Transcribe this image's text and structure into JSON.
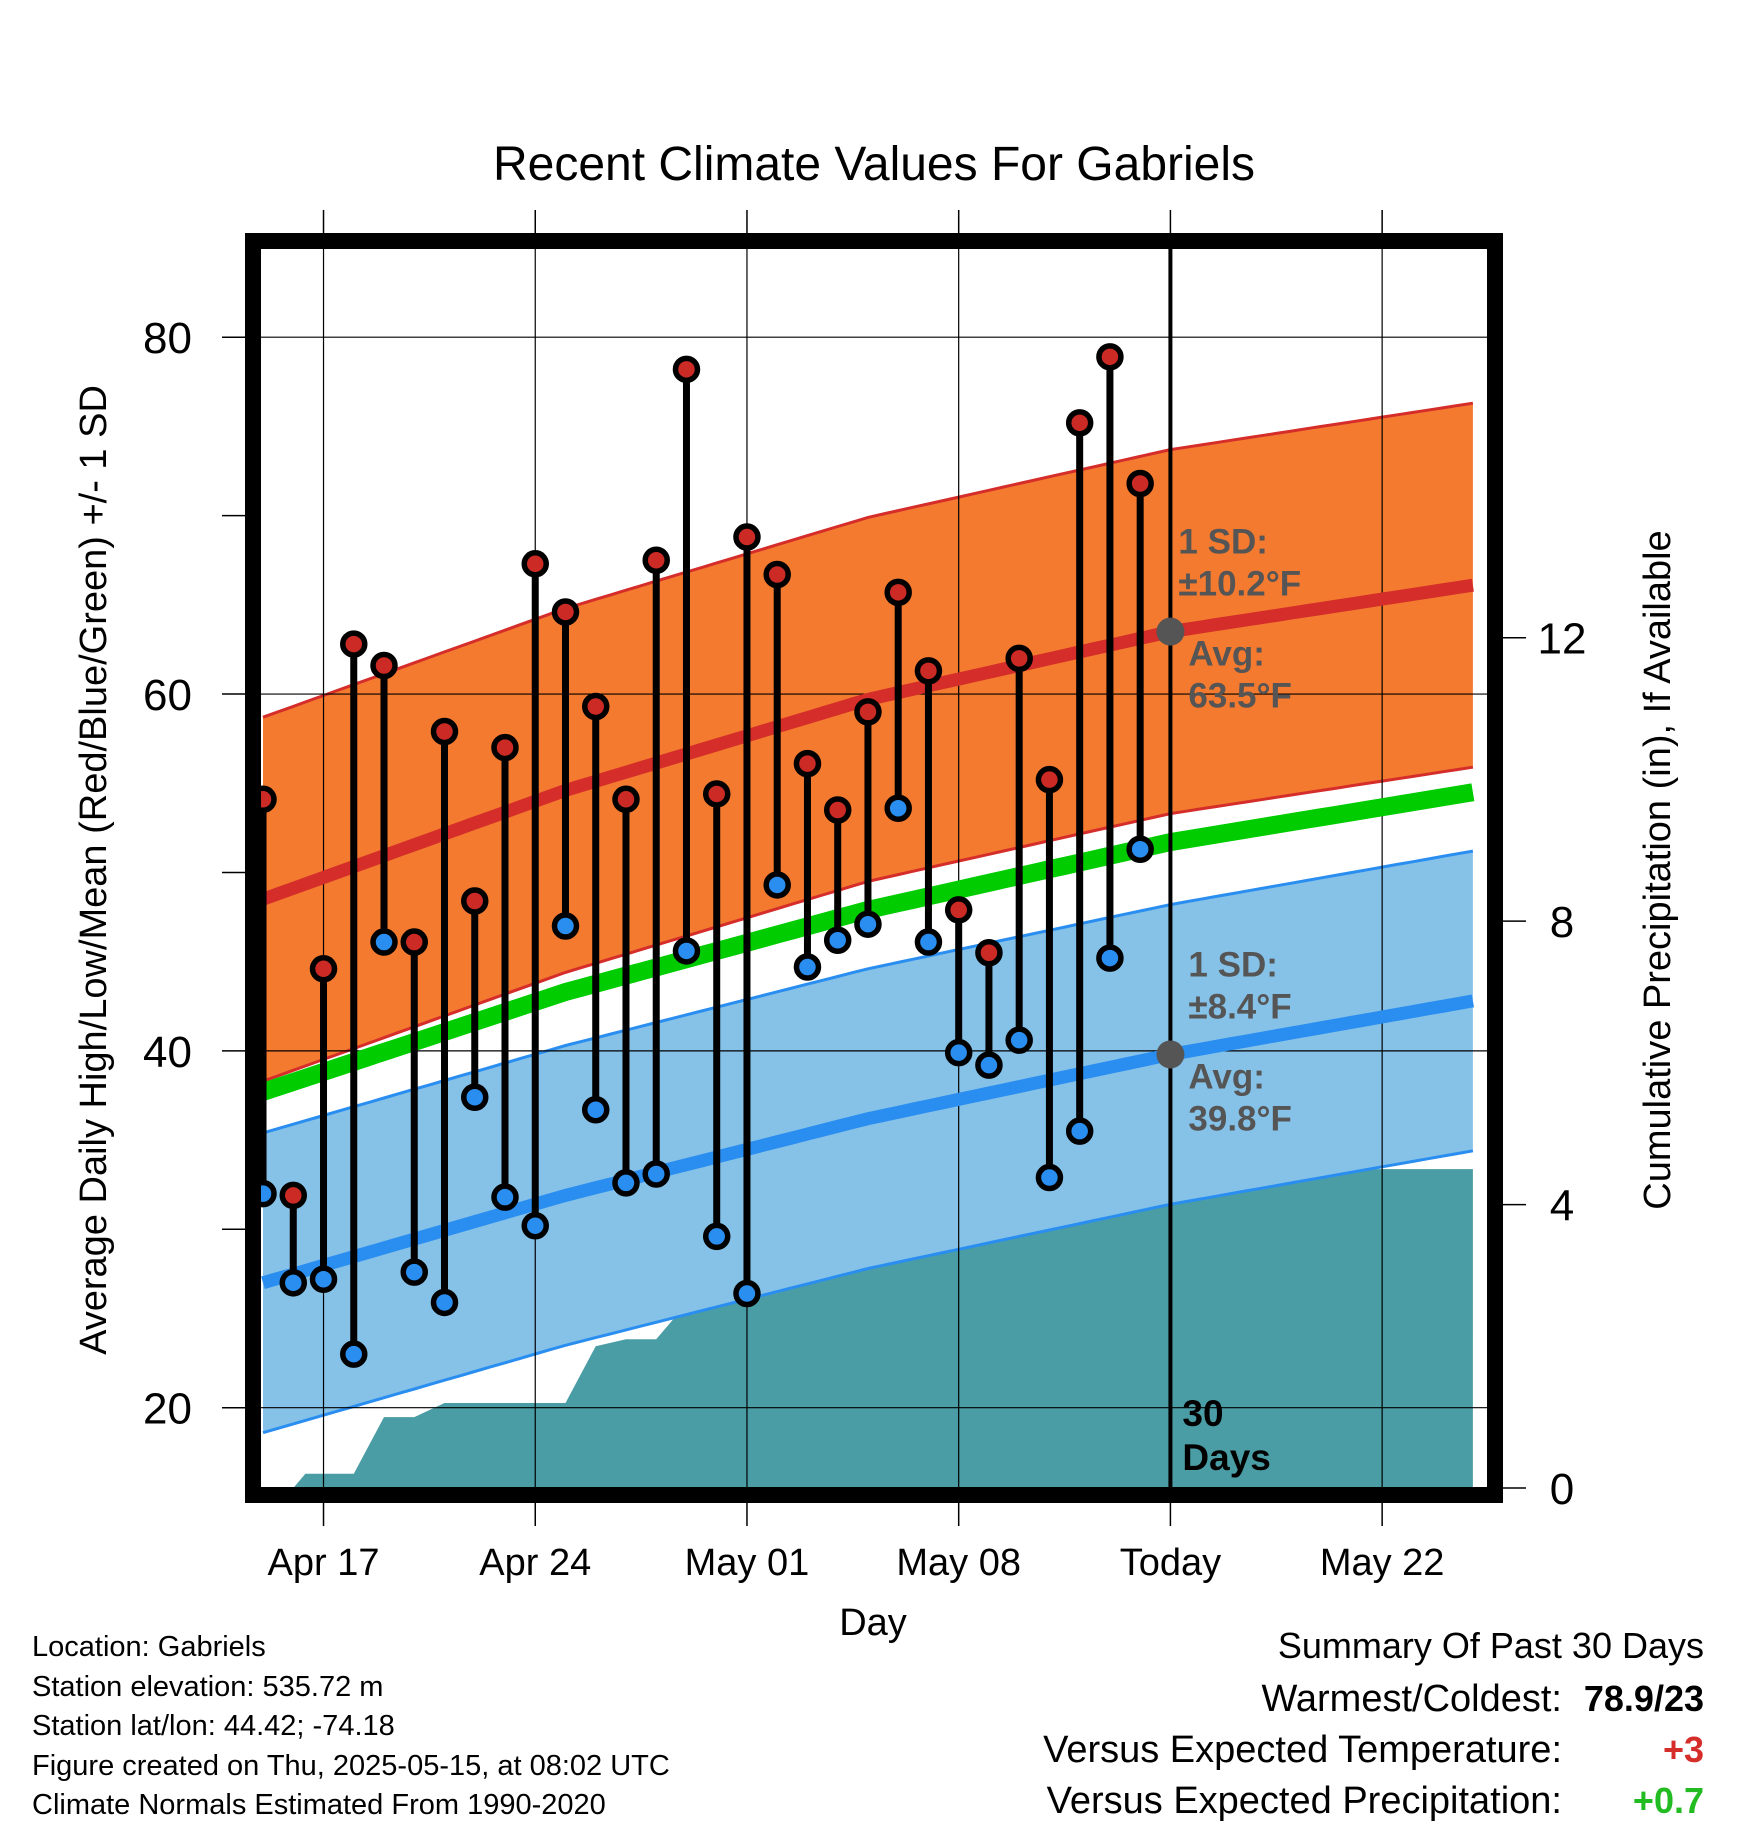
{
  "chart_data": {
    "type": "line",
    "title": "Recent Climate Values For Gabriels",
    "xlabel": "Day",
    "ylabel": "Average Daily High/Low/Mean (Red/Blue/Green) +/- 1 SD",
    "y2label": "Cumulative Precipitation (in), If Available",
    "ylim": [
      15.5,
      85
    ],
    "y2lim": [
      0,
      17.5
    ],
    "xlim": [
      -0.1,
      40.5
    ],
    "x_ticks": [
      {
        "x": 2,
        "label": "Apr 17"
      },
      {
        "x": 9,
        "label": "Apr 24"
      },
      {
        "x": 16,
        "label": "May 01"
      },
      {
        "x": 23,
        "label": "May 08"
      },
      {
        "x": 30,
        "label": "Today"
      },
      {
        "x": 37,
        "label": "May 22"
      }
    ],
    "y_ticks": [
      20,
      40,
      60,
      80
    ],
    "y2_ticks": [
      0,
      4,
      8,
      12
    ],
    "grid": true,
    "today_x": 30,
    "today_label": "30\nDays",
    "normal_high": {
      "x": [
        0,
        10,
        20,
        30,
        40
      ],
      "mean": [
        48.5,
        54.6,
        59.7,
        63.5,
        66.1
      ],
      "sd": 10.2
    },
    "normal_low": {
      "x": [
        0,
        10,
        20,
        30,
        40
      ],
      "mean": [
        27.0,
        31.9,
        36.2,
        39.8,
        42.8
      ],
      "sd": 8.4
    },
    "normal_mean": {
      "x": [
        0,
        10,
        20,
        30,
        40
      ],
      "values": [
        37.7,
        43.3,
        47.9,
        51.7,
        54.5
      ]
    },
    "annotations": {
      "high_sd": "1 SD:\n±10.2°F",
      "high_avg": "Avg:\n63.5°F",
      "low_sd": "1 SD:\n±8.4°F",
      "low_avg": "Avg:\n39.8°F"
    },
    "series": [
      {
        "name": "High",
        "x": [
          0,
          1,
          2,
          3,
          4,
          5,
          6,
          7,
          8,
          9,
          10,
          11,
          12,
          13,
          14,
          15,
          16,
          17,
          18,
          19,
          20,
          21,
          22,
          23,
          24,
          25,
          26,
          27,
          28,
          29
        ],
        "values": [
          54.1,
          31.9,
          44.6,
          62.8,
          61.6,
          46.1,
          57.9,
          48.4,
          57.0,
          67.3,
          64.6,
          59.3,
          54.1,
          67.5,
          78.2,
          54.4,
          68.8,
          66.7,
          56.1,
          53.5,
          59.0,
          65.7,
          61.3,
          47.9,
          45.5,
          62.0,
          55.2,
          75.2,
          78.9,
          71.8
        ]
      },
      {
        "name": "Low",
        "x": [
          0,
          1,
          2,
          3,
          4,
          5,
          6,
          7,
          8,
          9,
          10,
          11,
          12,
          13,
          14,
          15,
          16,
          17,
          18,
          19,
          20,
          21,
          22,
          23,
          24,
          25,
          26,
          27,
          28,
          29
        ],
        "values": [
          32.0,
          27.0,
          27.2,
          23.0,
          46.1,
          27.6,
          25.9,
          37.4,
          31.8,
          30.2,
          47.0,
          36.7,
          32.6,
          33.1,
          45.6,
          29.6,
          26.4,
          49.3,
          44.7,
          46.2,
          47.1,
          53.6,
          46.1,
          39.9,
          39.2,
          40.6,
          32.9,
          35.5,
          45.2,
          51.3
        ]
      }
    ],
    "precip": {
      "x": [
        0,
        1,
        1.4,
        2,
        3,
        4,
        5,
        6,
        7,
        8,
        9,
        10,
        11,
        12,
        13,
        14,
        15,
        16,
        17,
        18,
        19,
        20,
        21,
        22,
        23,
        24,
        25,
        26,
        27,
        28,
        29,
        30,
        40
      ],
      "values": [
        0,
        0,
        0.2,
        0.2,
        0.2,
        1.0,
        1.0,
        1.2,
        1.2,
        1.2,
        1.2,
        1.2,
        2.0,
        2.1,
        2.1,
        2.6,
        2.6,
        2.7,
        2.75,
        3.0,
        3.1,
        3.25,
        3.35,
        3.7,
        3.75,
        4.5,
        4.5,
        4.5,
        4.5,
        4.5,
        4.5,
        4.5,
        4.5
      ]
    },
    "colors": {
      "high_band": "#f47a2f",
      "high_line": "#d42d2a",
      "low_band": "#86c2e8",
      "low_line": "#2a8ef0",
      "mean_line": "#00cc00",
      "precip": "#4a9ca5",
      "high_marker": "#cc2a24",
      "low_marker": "#2a8ef0",
      "annotation": "#555555"
    }
  },
  "meta": {
    "location": "Location: Gabriels",
    "elevation": "Station elevation: 535.72 m",
    "latlon": "Station lat/lon: 44.42; -74.18",
    "created": "Figure created on Thu, 2025-05-15, at 08:02 UTC",
    "normals": "Climate Normals Estimated From 1990-2020"
  },
  "summary": {
    "title": "Summary Of Past 30 Days",
    "warmest_label": "Warmest/Coldest:",
    "warmest_value": "78.9/23",
    "temp_label": "Versus Expected Temperature:",
    "temp_value": "+3",
    "precip_label": "Versus Expected Precipitation:",
    "precip_value": "+0.7",
    "temp_color": "#d42d2a",
    "precip_color": "#22bb22"
  }
}
